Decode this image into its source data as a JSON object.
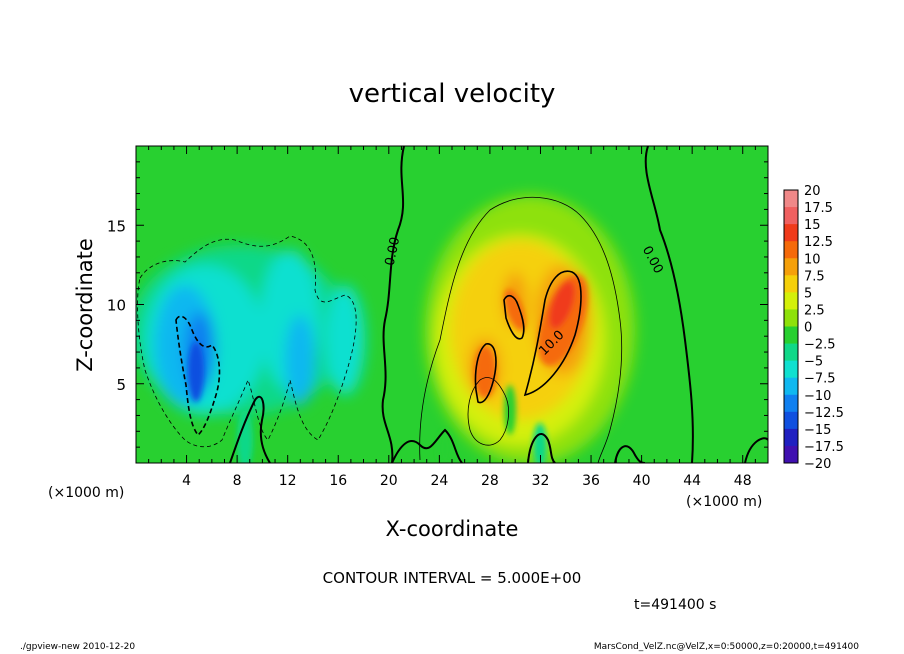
{
  "chart_data": {
    "type": "heatmap",
    "title": "vertical velocity",
    "xlabel": "X-coordinate",
    "ylabel": "Z-coordinate",
    "x_unit_left": "(×1000 m)",
    "x_unit_right": "(×1000 m)",
    "xlim": [
      0,
      50
    ],
    "ylim": [
      0,
      20
    ],
    "x_ticks": [
      4,
      8,
      12,
      16,
      20,
      24,
      28,
      32,
      36,
      40,
      44,
      48
    ],
    "y_ticks": [
      5,
      10,
      15
    ],
    "contour_interval_text": "CONTOUR INTERVAL = 5.000E+00",
    "time_text": "t=491400 s",
    "colorbar": {
      "levels": [
        20,
        17.5,
        15,
        12.5,
        10,
        7.5,
        5,
        2.5,
        0,
        -2.5,
        -5,
        -7.5,
        -10,
        -12.5,
        -15,
        -17.5,
        -20
      ],
      "labels": [
        "20",
        "17.5",
        "15",
        "12.5",
        "10",
        "7.5",
        "5",
        "2.5",
        "0",
        "−2.5",
        "−5",
        "−7.5",
        "−10",
        "−12.5",
        "−15",
        "−17.5",
        "−20"
      ],
      "colors": [
        "#f08888",
        "#f06060",
        "#f03a1a",
        "#f56a0a",
        "#f5a00a",
        "#f5d00a",
        "#d4f00a",
        "#8ee10a",
        "#28d030",
        "#10d888",
        "#10e0d0",
        "#10b8f0",
        "#1080f0",
        "#1050e0",
        "#2020c0",
        "#4010b0",
        "#6000a0"
      ]
    },
    "contour_labels": [
      {
        "text": "0.00",
        "x": 20.6,
        "z": 13.3,
        "angle": -78
      },
      {
        "text": "0.00",
        "x": 40.6,
        "z": 12.7,
        "angle": 62
      },
      {
        "text": "10.0",
        "x": 33.1,
        "z": 7.4,
        "angle": -45
      }
    ]
  },
  "footer": {
    "left": "./gpview-new  2010-12-20",
    "right": "MarsCond_VelZ.nc@VelZ,x=0:50000,z=0:20000,t=491400"
  },
  "colors": {
    "background_field": "#28d030",
    "axis": "#000000"
  }
}
